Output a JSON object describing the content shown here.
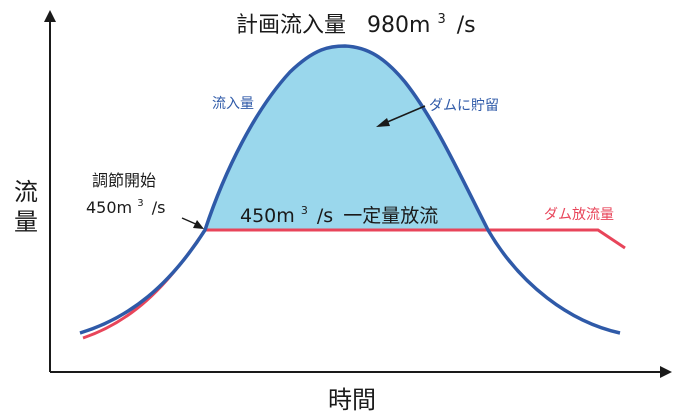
{
  "title": {
    "prefix": "計画流入量",
    "value": "980m",
    "superscript": "3",
    "suffix": "/s"
  },
  "y_axis_label": {
    "line1": "流",
    "line2": "量"
  },
  "x_axis_label": "時間",
  "inflow_label": "流入量",
  "storage_label": "ダムに貯留",
  "regulation_start": {
    "line1": "調節開始",
    "line2_value": "450m",
    "line2_superscript": "3",
    "line2_suffix": "/s"
  },
  "constant_release": {
    "value": "450m",
    "superscript": "3",
    "suffix": "/s",
    "text": "一定量放流"
  },
  "outflow_label": "ダム放流量",
  "colors": {
    "inflow_line": "#2f5aa8",
    "storage_fill": "#9ad7ec",
    "outflow_line": "#e8455a",
    "axis": "#1a1a1a"
  }
}
